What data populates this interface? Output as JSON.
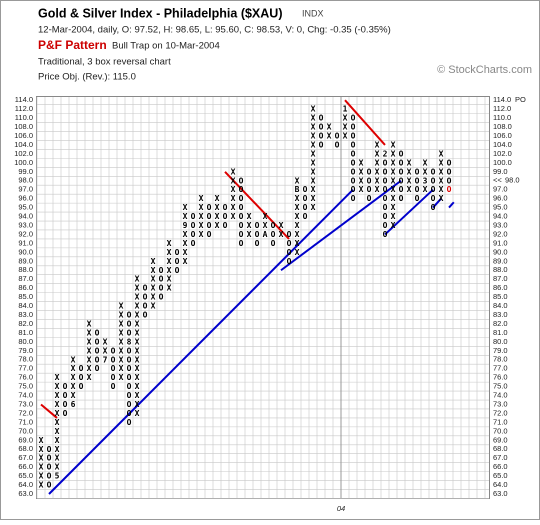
{
  "chart_data": {
    "type": "pnf",
    "title": "Gold & Silver Index - Philadelphia ($XAU)",
    "exchange": "INDX",
    "subtitle": "12-Mar-2004, daily, O: 97.52, H: 98.65, L: 95.60, C: 98.53, V: 0, Chg: -0.35 (-0.35%)",
    "pattern_label": "P&F Pattern",
    "pattern": "Bull Trap on 10-Mar-2004",
    "description": "Traditional, 3 box reversal chart",
    "price_objective_text": "Price Obj. (Rev.): 115.0",
    "copyright": "© StockCharts.com",
    "ylim": [
      63,
      114
    ],
    "yticks": [
      {
        "value": 63,
        "label": "63.0"
      },
      {
        "value": 64,
        "label": "64.0"
      },
      {
        "value": 65,
        "label": "65.0"
      },
      {
        "value": 66,
        "label": "66.0"
      },
      {
        "value": 67,
        "label": "67.0"
      },
      {
        "value": 68,
        "label": "68.0"
      },
      {
        "value": 69,
        "label": "69.0"
      },
      {
        "value": 70,
        "label": "70.0"
      },
      {
        "value": 71,
        "label": "71.0"
      },
      {
        "value": 72,
        "label": "72.0"
      },
      {
        "value": 73,
        "label": "73.0"
      },
      {
        "value": 74,
        "label": "74.0"
      },
      {
        "value": 75,
        "label": "75.0"
      },
      {
        "value": 76,
        "label": "76.0"
      },
      {
        "value": 77,
        "label": "77.0"
      },
      {
        "value": 78,
        "label": "78.0"
      },
      {
        "value": 79,
        "label": "79.0"
      },
      {
        "value": 80,
        "label": "80.0"
      },
      {
        "value": 81,
        "label": "81.0"
      },
      {
        "value": 82,
        "label": "82.0"
      },
      {
        "value": 83,
        "label": "83.0"
      },
      {
        "value": 84,
        "label": "84.0"
      },
      {
        "value": 85,
        "label": "85.0"
      },
      {
        "value": 86,
        "label": "86.0"
      },
      {
        "value": 87,
        "label": "87.0"
      },
      {
        "value": 88,
        "label": "88.0"
      },
      {
        "value": 89,
        "label": "89.0"
      },
      {
        "value": 90,
        "label": "90.0"
      },
      {
        "value": 91,
        "label": "91.0"
      },
      {
        "value": 92,
        "label": "92.0"
      },
      {
        "value": 93,
        "label": "93.0"
      },
      {
        "value": 94,
        "label": "94.0"
      },
      {
        "value": 95,
        "label": "95.0"
      },
      {
        "value": 96,
        "label": "96.0"
      },
      {
        "value": 97,
        "label": "97.0"
      },
      {
        "value": 98,
        "label": "98.0"
      },
      {
        "value": 99,
        "label": "99.0"
      },
      {
        "value": 100,
        "label": "100.0"
      },
      {
        "value": 102,
        "label": "102.0"
      },
      {
        "value": 104,
        "label": "104.0"
      },
      {
        "value": 106,
        "label": "106.0"
      },
      {
        "value": 108,
        "label": "108.0"
      },
      {
        "value": 110,
        "label": "110.0"
      },
      {
        "value": 112,
        "label": "112.0"
      },
      {
        "value": 114,
        "label": "114.0"
      }
    ],
    "price_objective": {
      "value": 114,
      "label": "PO",
      "color": "#0000cc"
    },
    "last_price": {
      "value": 98,
      "label": "<<",
      "color": "#dd0000"
    },
    "last_box_color": "#dd0000",
    "columns": [
      {
        "type": "X",
        "low": 64,
        "high": 69
      },
      {
        "type": "O",
        "low": 64,
        "high": 68
      },
      {
        "type": "X",
        "low": 65,
        "high": 76,
        "marks": [
          {
            "value": 65,
            "label": "5"
          }
        ]
      },
      {
        "type": "O",
        "low": 72,
        "high": 75
      },
      {
        "type": "X",
        "low": 73,
        "high": 78,
        "marks": [
          {
            "value": 73,
            "label": "6"
          }
        ]
      },
      {
        "type": "O",
        "low": 75,
        "high": 77
      },
      {
        "type": "X",
        "low": 76,
        "high": 82
      },
      {
        "type": "O",
        "low": 77,
        "high": 81
      },
      {
        "type": "X",
        "low": 78,
        "high": 80,
        "marks": [
          {
            "value": 78,
            "label": "7"
          }
        ]
      },
      {
        "type": "O",
        "low": 75,
        "high": 79
      },
      {
        "type": "X",
        "low": 76,
        "high": 84
      },
      {
        "type": "O",
        "low": 71,
        "high": 83,
        "marks": [
          {
            "value": 80,
            "label": "8"
          }
        ]
      },
      {
        "type": "X",
        "low": 72,
        "high": 87
      },
      {
        "type": "O",
        "low": 83,
        "high": 86
      },
      {
        "type": "X",
        "low": 84,
        "high": 89
      },
      {
        "type": "O",
        "low": 85,
        "high": 88
      },
      {
        "type": "X",
        "low": 86,
        "high": 91
      },
      {
        "type": "O",
        "low": 88,
        "high": 90
      },
      {
        "type": "X",
        "low": 89,
        "high": 95,
        "marks": [
          {
            "value": 93,
            "label": "9"
          }
        ]
      },
      {
        "type": "O",
        "low": 91,
        "high": 94
      },
      {
        "type": "X",
        "low": 92,
        "high": 96
      },
      {
        "type": "O",
        "low": 92,
        "high": 95
      },
      {
        "type": "X",
        "low": 93,
        "high": 96
      },
      {
        "type": "O",
        "low": 93,
        "high": 95
      },
      {
        "type": "X",
        "low": 94,
        "high": 99
      },
      {
        "type": "O",
        "low": 91,
        "high": 98
      },
      {
        "type": "X",
        "low": 92,
        "high": 94
      },
      {
        "type": "O",
        "low": 91,
        "high": 93
      },
      {
        "type": "X",
        "low": 92,
        "high": 94,
        "marks": [
          {
            "value": 92,
            "label": "A"
          }
        ]
      },
      {
        "type": "O",
        "low": 91,
        "high": 93
      },
      {
        "type": "X",
        "low": 92,
        "high": 93
      },
      {
        "type": "O",
        "low": 89,
        "high": 92
      },
      {
        "type": "X",
        "low": 90,
        "high": 98,
        "marks": [
          {
            "value": 97,
            "label": "B"
          }
        ]
      },
      {
        "type": "O",
        "low": 94,
        "high": 97
      },
      {
        "type": "X",
        "low": 95,
        "high": 112
      },
      {
        "type": "O",
        "low": 104,
        "high": 110
      },
      {
        "type": "X",
        "low": 106,
        "high": 108
      },
      {
        "type": "O",
        "low": 104,
        "high": 106
      },
      {
        "type": "X",
        "low": 106,
        "high": 112,
        "marks": [
          {
            "value": 112,
            "label": "1"
          }
        ]
      },
      {
        "type": "O",
        "low": 96,
        "high": 110
      },
      {
        "type": "X",
        "low": 97,
        "high": 100
      },
      {
        "type": "O",
        "low": 96,
        "high": 99
      },
      {
        "type": "X",
        "low": 97,
        "high": 104
      },
      {
        "type": "O",
        "low": 92,
        "high": 102,
        "marks": [
          {
            "value": 102,
            "label": "2"
          }
        ]
      },
      {
        "type": "X",
        "low": 93,
        "high": 104
      },
      {
        "type": "O",
        "low": 96,
        "high": 102
      },
      {
        "type": "X",
        "low": 97,
        "high": 100
      },
      {
        "type": "O",
        "low": 96,
        "high": 99
      },
      {
        "type": "X",
        "low": 97,
        "high": 100,
        "marks": [
          {
            "value": 98,
            "label": "3"
          }
        ]
      },
      {
        "type": "O",
        "low": 95,
        "high": 99
      },
      {
        "type": "X",
        "low": 96,
        "high": 102
      },
      {
        "type": "O",
        "low": 97,
        "high": 100
      }
    ],
    "trendlines": [
      {
        "color": "#dd0000",
        "from": [
          0,
          73
        ],
        "to": [
          2,
          71.5
        ]
      },
      {
        "color": "#dd0000",
        "from": [
          23,
          99
        ],
        "to": [
          31,
          91.5
        ]
      },
      {
        "color": "#dd0000",
        "from": [
          38,
          114
        ],
        "to": [
          43,
          104
        ]
      },
      {
        "color": "#0000cc",
        "from": [
          1,
          63
        ],
        "to": [
          39,
          97
        ]
      },
      {
        "color": "#0000cc",
        "from": [
          30,
          88
        ],
        "to": [
          45,
          98
        ]
      },
      {
        "color": "#0000cc",
        "from": [
          43,
          92
        ],
        "to": [
          49,
          97
        ]
      },
      {
        "color": "#0000cc",
        "from": [
          49,
          95
        ],
        "to": [
          50,
          96
        ]
      },
      {
        "color": "#0000cc",
        "from": [
          51,
          95
        ],
        "to": [
          51.6,
          95.6
        ]
      }
    ],
    "year_marks": [
      {
        "column": 38,
        "label": "04"
      }
    ]
  }
}
